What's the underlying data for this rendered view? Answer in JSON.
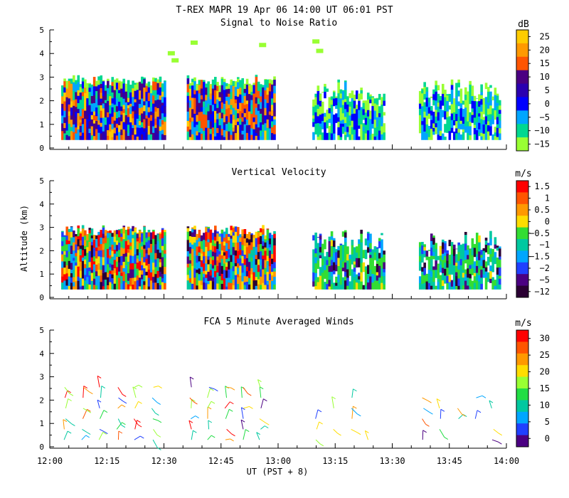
{
  "header": {
    "title": "T-REX  MAPR 19 Apr 06  14:00 UT  06:01  PST"
  },
  "chart_data": [
    {
      "type": "heatmap",
      "title": "Signal to Noise Ratio",
      "ylabel": "",
      "ylim": [
        0,
        5
      ],
      "yticks": [
        "0",
        "1",
        "2",
        "3",
        "4",
        "5"
      ],
      "unit": "dB",
      "colorbar_labels": [
        "25",
        "20",
        "15",
        "10",
        "5",
        "0",
        "−5",
        "−10",
        "−15"
      ],
      "colors": [
        "#ffcc00",
        "#ff9900",
        "#ff5500",
        "#4b0082",
        "#2b00b0",
        "#0000ff",
        "#00a6ff",
        "#00d890",
        "#99ff33"
      ],
      "gaps_ut": [
        [
          "12:30",
          "12:36"
        ],
        [
          "12:59",
          "13:09"
        ],
        [
          "13:28",
          "13:37"
        ]
      ]
    },
    {
      "type": "heatmap",
      "title": "Vertical Velocity",
      "ylabel": "Altitude (km)",
      "ylim": [
        0,
        5
      ],
      "yticks": [
        "0",
        "1",
        "2",
        "3",
        "4",
        "5"
      ],
      "unit": "m/s",
      "colorbar_labels": [
        "1.5",
        "1",
        "0.5",
        "0",
        "−0.5",
        "−1",
        "−1.5",
        "−2",
        "−5",
        "−12"
      ],
      "colors": [
        "#ff0000",
        "#ff5500",
        "#ff9900",
        "#ffdd00",
        "#33dd33",
        "#00c8a0",
        "#00a6ff",
        "#2040ff",
        "#4b0082",
        "#2a0033"
      ]
    },
    {
      "type": "scatter",
      "title": "FCA 5 Minute Averaged Winds",
      "ylabel": "",
      "ylim": [
        0,
        5
      ],
      "yticks": [
        "0",
        "1",
        "2",
        "3",
        "4",
        "5"
      ],
      "xlabel": "UT  (PST + 8)",
      "x_ticks": [
        "12:00",
        "12:15",
        "12:30",
        "12:45",
        "13:00",
        "13:15",
        "13:30",
        "13:45",
        "14:00"
      ],
      "unit": "m/s",
      "colorbar_labels": [
        "30",
        "25",
        "20",
        "15",
        "10",
        "5",
        "0"
      ],
      "colors": [
        "#ff0000",
        "#ff5500",
        "#ff9900",
        "#ffdd00",
        "#99ff33",
        "#22dd44",
        "#00c8a0",
        "#00a6ff",
        "#2040ff",
        "#4b0082"
      ]
    }
  ]
}
